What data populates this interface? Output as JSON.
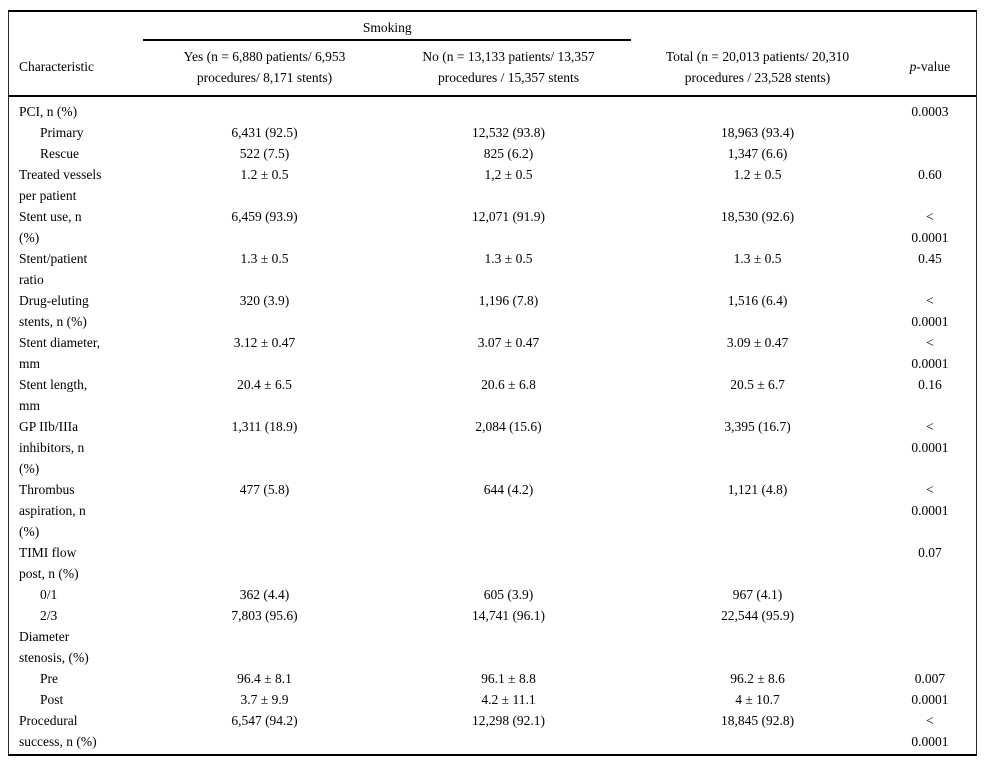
{
  "table": {
    "group_header": "Smoking",
    "columns": {
      "characteristic": "Characteristic",
      "yes": "Yes (n = 6,880 patients/ 6,953\nprocedures/ 8,171 stents)",
      "no": "No (n = 13,133 patients/ 13,357\nprocedures / 15,357 stents",
      "total": "Total (n = 20,013 patients/ 20,310\nprocedures / 23,528 stents)",
      "p_italic": "p",
      "p_rest": "-value"
    },
    "rows": [
      {
        "label": "PCI, n (%)",
        "indent": false,
        "yes": "",
        "no": "",
        "total": "",
        "p": "0.0003"
      },
      {
        "label": "Primary",
        "indent": true,
        "yes": "6,431 (92.5)",
        "no": "12,532 (93.8)",
        "total": "18,963 (93.4)",
        "p": ""
      },
      {
        "label": "Rescue",
        "indent": true,
        "yes": "522 (7.5)",
        "no": "825 (6.2)",
        "total": "1,347 (6.6)",
        "p": ""
      },
      {
        "label": "Treated vessels\nper patient",
        "indent": false,
        "yes": "1.2 ± 0.5",
        "no": "1,2 ± 0.5",
        "total": "1.2 ± 0.5",
        "p": "0.60"
      },
      {
        "label": "Stent use, n\n(%)",
        "indent": false,
        "yes": "6,459 (93.9)",
        "no": "12,071 (91.9)",
        "total": "18,530 (92.6)",
        "p": "<\n0.0001"
      },
      {
        "label": "Stent/patient\nratio",
        "indent": false,
        "yes": "1.3 ± 0.5",
        "no": "1.3 ± 0.5",
        "total": "1.3 ± 0.5",
        "p": "0.45"
      },
      {
        "label": "Drug-eluting\nstents, n (%)",
        "indent": false,
        "yes": "320 (3.9)",
        "no": "1,196 (7.8)",
        "total": "1,516 (6.4)",
        "p": "<\n0.0001"
      },
      {
        "label": "Stent diameter,\nmm",
        "indent": false,
        "yes": "3.12 ± 0.47",
        "no": "3.07 ± 0.47",
        "total": "3.09 ± 0.47",
        "p": "<\n0.0001"
      },
      {
        "label": "Stent length,\nmm",
        "indent": false,
        "yes": "20.4 ± 6.5",
        "no": "20.6 ± 6.8",
        "total": "20.5 ± 6.7",
        "p": "0.16"
      },
      {
        "label": "GP IIb/IIIa\ninhibitors, n\n(%)",
        "indent": false,
        "yes": "1,311 (18.9)",
        "no": "2,084 (15.6)",
        "total": "3,395 (16.7)",
        "p": "<\n0.0001"
      },
      {
        "label": "Thrombus\naspiration, n\n(%)",
        "indent": false,
        "yes": "477 (5.8)",
        "no": "644 (4.2)",
        "total": "1,121 (4.8)",
        "p": "<\n0.0001"
      },
      {
        "label": "TIMI flow\npost, n (%)",
        "indent": false,
        "yes": "",
        "no": "",
        "total": "",
        "p": "0.07"
      },
      {
        "label": "0/1",
        "indent": true,
        "yes": "362 (4.4)",
        "no": "605 (3.9)",
        "total": "967 (4.1)",
        "p": ""
      },
      {
        "label": "2/3",
        "indent": true,
        "yes": "7,803 (95.6)",
        "no": "14,741 (96.1)",
        "total": "22,544 (95.9)",
        "p": ""
      },
      {
        "label": "Diameter\nstenosis, (%)",
        "indent": false,
        "yes": "",
        "no": "",
        "total": "",
        "p": ""
      },
      {
        "label": "Pre",
        "indent": true,
        "yes": "96.4 ± 8.1",
        "no": "96.1 ± 8.8",
        "total": "96.2 ± 8.6",
        "p": "0.007"
      },
      {
        "label": "Post",
        "indent": true,
        "yes": "3.7 ± 9.9",
        "no": "4.2 ± 11.1",
        "total": "4 ± 10.7",
        "p": "0.0001"
      },
      {
        "label": "Procedural\nsuccess, n (%)",
        "indent": false,
        "yes": "6,547 (94.2)",
        "no": "12,298 (92.1)",
        "total": "18,845 (92.8)",
        "p": "<\n0.0001"
      }
    ]
  }
}
